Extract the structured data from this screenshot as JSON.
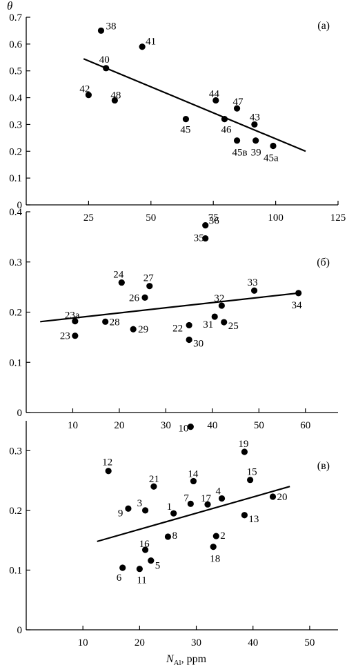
{
  "chart_data": [
    {
      "type": "scatter",
      "panel_label": "(а)",
      "ylabel": "θ",
      "xlim": [
        0,
        125
      ],
      "ylim": [
        0,
        0.7
      ],
      "xticks": [
        25,
        50,
        75,
        100,
        125
      ],
      "yticks": [
        0,
        0.1,
        0.2,
        0.3,
        0.4,
        0.5,
        0.6,
        0.7
      ],
      "x_ticklabels": [
        "25",
        "50",
        "75",
        "100",
        "125"
      ],
      "y_ticklabels": [
        "0",
        "0.1",
        "0.2",
        "0.3",
        "0.4",
        "0.5",
        "0.6",
        "0.7"
      ],
      "points": [
        {
          "label": "38",
          "x": 30,
          "y": 0.65
        },
        {
          "label": "41",
          "x": 46.5,
          "y": 0.59
        },
        {
          "label": "40",
          "x": 32,
          "y": 0.51
        },
        {
          "label": "42",
          "x": 25,
          "y": 0.41
        },
        {
          "label": "48",
          "x": 35.5,
          "y": 0.39
        },
        {
          "label": "44",
          "x": 76,
          "y": 0.39
        },
        {
          "label": "47",
          "x": 84.5,
          "y": 0.36
        },
        {
          "label": "45",
          "x": 64,
          "y": 0.32
        },
        {
          "label": "46",
          "x": 79.5,
          "y": 0.32
        },
        {
          "label": "43",
          "x": 91.5,
          "y": 0.3
        },
        {
          "label": "45в",
          "x": 84.5,
          "y": 0.24
        },
        {
          "label": "39",
          "x": 92,
          "y": 0.24
        },
        {
          "label": "45a",
          "x": 99,
          "y": 0.22
        }
      ],
      "fit_line": {
        "x": [
          23,
          112
        ],
        "y": [
          0.545,
          0.2
        ]
      }
    },
    {
      "type": "scatter",
      "panel_label": "(б)",
      "xlim": [
        0,
        67
      ],
      "ylim": [
        0,
        0.4
      ],
      "xticks": [
        10,
        20,
        30,
        40,
        50,
        60
      ],
      "yticks": [
        0,
        0.1,
        0.2,
        0.3,
        0.4
      ],
      "x_ticklabels": [
        "10",
        "20",
        "30",
        "40",
        "50",
        "60"
      ],
      "y_ticklabels": [
        "0",
        "0.1",
        "0.2",
        "0.3",
        "0.4"
      ],
      "points": [
        {
          "label": "36",
          "x": 38.5,
          "y": 0.373
        },
        {
          "label": "35",
          "x": 38.5,
          "y": 0.347
        },
        {
          "label": "24",
          "x": 20.5,
          "y": 0.259
        },
        {
          "label": "27",
          "x": 26.5,
          "y": 0.252
        },
        {
          "label": "26",
          "x": 25.5,
          "y": 0.229
        },
        {
          "label": "33",
          "x": 49,
          "y": 0.243
        },
        {
          "label": "34",
          "x": 58.5,
          "y": 0.238
        },
        {
          "label": "32",
          "x": 42,
          "y": 0.213
        },
        {
          "label": "23a",
          "x": 10.5,
          "y": 0.182
        },
        {
          "label": "28",
          "x": 17,
          "y": 0.181
        },
        {
          "label": "29",
          "x": 23,
          "y": 0.166
        },
        {
          "label": "22",
          "x": 35,
          "y": 0.174
        },
        {
          "label": "31",
          "x": 40.5,
          "y": 0.191
        },
        {
          "label": "25",
          "x": 42.5,
          "y": 0.18
        },
        {
          "label": "23",
          "x": 10.5,
          "y": 0.153
        },
        {
          "label": "30",
          "x": 35,
          "y": 0.145
        }
      ],
      "fit_line": {
        "x": [
          3,
          58.5
        ],
        "y": [
          0.181,
          0.238
        ]
      }
    },
    {
      "type": "scatter",
      "panel_label": "(в)",
      "xlabel": "N",
      "xlabel_sub": "Al",
      "xlabel_suffix": ", ppm",
      "xlim": [
        0,
        55
      ],
      "ylim": [
        0,
        0.35
      ],
      "xticks": [
        10,
        20,
        30,
        40,
        50
      ],
      "yticks": [
        0,
        0.1,
        0.2,
        0.3
      ],
      "x_ticklabels": [
        "10",
        "20",
        "30",
        "40",
        "50"
      ],
      "y_ticklabels": [
        "0",
        "0.1",
        "0.2",
        "0.3"
      ],
      "points": [
        {
          "label": "10",
          "x": 29,
          "y": 0.34
        },
        {
          "label": "19",
          "x": 38.5,
          "y": 0.298
        },
        {
          "label": "12",
          "x": 14.5,
          "y": 0.266
        },
        {
          "label": "14",
          "x": 29.5,
          "y": 0.249
        },
        {
          "label": "15",
          "x": 39.5,
          "y": 0.251
        },
        {
          "label": "21",
          "x": 22.5,
          "y": 0.24
        },
        {
          "label": "20",
          "x": 43.5,
          "y": 0.223
        },
        {
          "label": "4",
          "x": 34.5,
          "y": 0.22
        },
        {
          "label": "7",
          "x": 29,
          "y": 0.211
        },
        {
          "label": "17",
          "x": 32,
          "y": 0.21
        },
        {
          "label": "3",
          "x": 21,
          "y": 0.2
        },
        {
          "label": "9",
          "x": 18,
          "y": 0.203
        },
        {
          "label": "1",
          "x": 26,
          "y": 0.195
        },
        {
          "label": "13",
          "x": 38.5,
          "y": 0.192
        },
        {
          "label": "8",
          "x": 25,
          "y": 0.156
        },
        {
          "label": "2",
          "x": 33.5,
          "y": 0.157
        },
        {
          "label": "16",
          "x": 21,
          "y": 0.134
        },
        {
          "label": "18",
          "x": 33,
          "y": 0.139
        },
        {
          "label": "5",
          "x": 22,
          "y": 0.116
        },
        {
          "label": "6",
          "x": 17,
          "y": 0.104
        },
        {
          "label": "11",
          "x": 20,
          "y": 0.102
        }
      ],
      "fit_line": {
        "x": [
          12.5,
          46.5
        ],
        "y": [
          0.148,
          0.24
        ]
      }
    }
  ]
}
